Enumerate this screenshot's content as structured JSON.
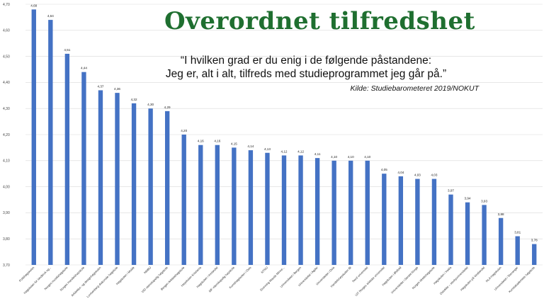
{
  "slide": {
    "title": "Overordnet tilfredshet",
    "quote_line1": "“I hvilken grad er du enig i de følgende påstandene:",
    "quote_line2": "Jeg er, alt i alt, tilfreds med studieprogrammet jeg går på.”",
    "source": "Kilde: Studiebarometeret 2019/NOKUT"
  },
  "colors": {
    "bar": "#4472c4",
    "title": "#1f6f30",
    "grid": "#d9d9d9"
  },
  "chart_data": {
    "type": "bar",
    "title": "Overordnet tilfredshet",
    "xlabel": "",
    "ylabel": "",
    "ylim": [
      3.7,
      4.7
    ],
    "yticks": [
      "3,70",
      "3,80",
      "3,90",
      "4,00",
      "4,10",
      "4,20",
      "4,30",
      "4,40",
      "4,50",
      "4,60",
      "4,70"
    ],
    "grid": true,
    "categories": [
      "Politihøgskolen",
      "Høgskolen for landbruk og...",
      "Norges musikkhøgskole",
      "Norges Handelshøyskole",
      "Arkitektur- og designhøgskolen",
      "Lovisenberg diakonale høgskole",
      "Høgskolen i Molde",
      "NMBU",
      "VID vitenskapelig høgskole",
      "Bergen Arkitekthøgskole",
      "Høyskolen Kristiania",
      "Høgskolen i Innlandet",
      "MF vitenskapelig høyskole",
      "Kunsthøgskolen i Oslo",
      "NTNU",
      "Dronning Mauds Minne...",
      "Universitetet i Bergen",
      "Universitetet i Agder",
      "Universitetet i Oslo",
      "Handelshøyskolen BI",
      "Nord universitet",
      "UiT Norges arktiske universitet",
      "Høgskulen i Østfold",
      "Universitetet i Sørøst-Norge",
      "Norges idrettshøgskole",
      "Høgskulen i Volda",
      "OsloMet – storbyuniversitetet",
      "Høgskulen på Vestlandet",
      "NLA Høgskolen",
      "Universitetet i Stavanger",
      "Kunstakademiets høgskole"
    ],
    "value_labels": [
      "4,68",
      "4,64",
      "4,51",
      "4,44",
      "4,37",
      "4,36",
      "4,32",
      "4,30",
      "4,29",
      "4,20",
      "4,16",
      "4,16",
      "4,15",
      "4,14",
      "4,13",
      "4,12",
      "4,12",
      "4,11",
      "4,10",
      "4,10",
      "4,10",
      "4,05",
      "4,04",
      "4,03",
      "4,03",
      "3,97",
      "3,94",
      "3,93",
      "3,88",
      "3,81",
      "3,78"
    ],
    "series": [
      {
        "values": [
          4.68,
          4.64,
          4.51,
          4.44,
          4.37,
          4.36,
          4.32,
          4.3,
          4.29,
          4.2,
          4.16,
          4.16,
          4.15,
          4.14,
          4.13,
          4.12,
          4.12,
          4.11,
          4.1,
          4.1,
          4.1,
          4.05,
          4.04,
          4.03,
          4.03,
          3.97,
          3.94,
          3.93,
          3.88,
          3.81,
          3.78
        ]
      }
    ]
  }
}
